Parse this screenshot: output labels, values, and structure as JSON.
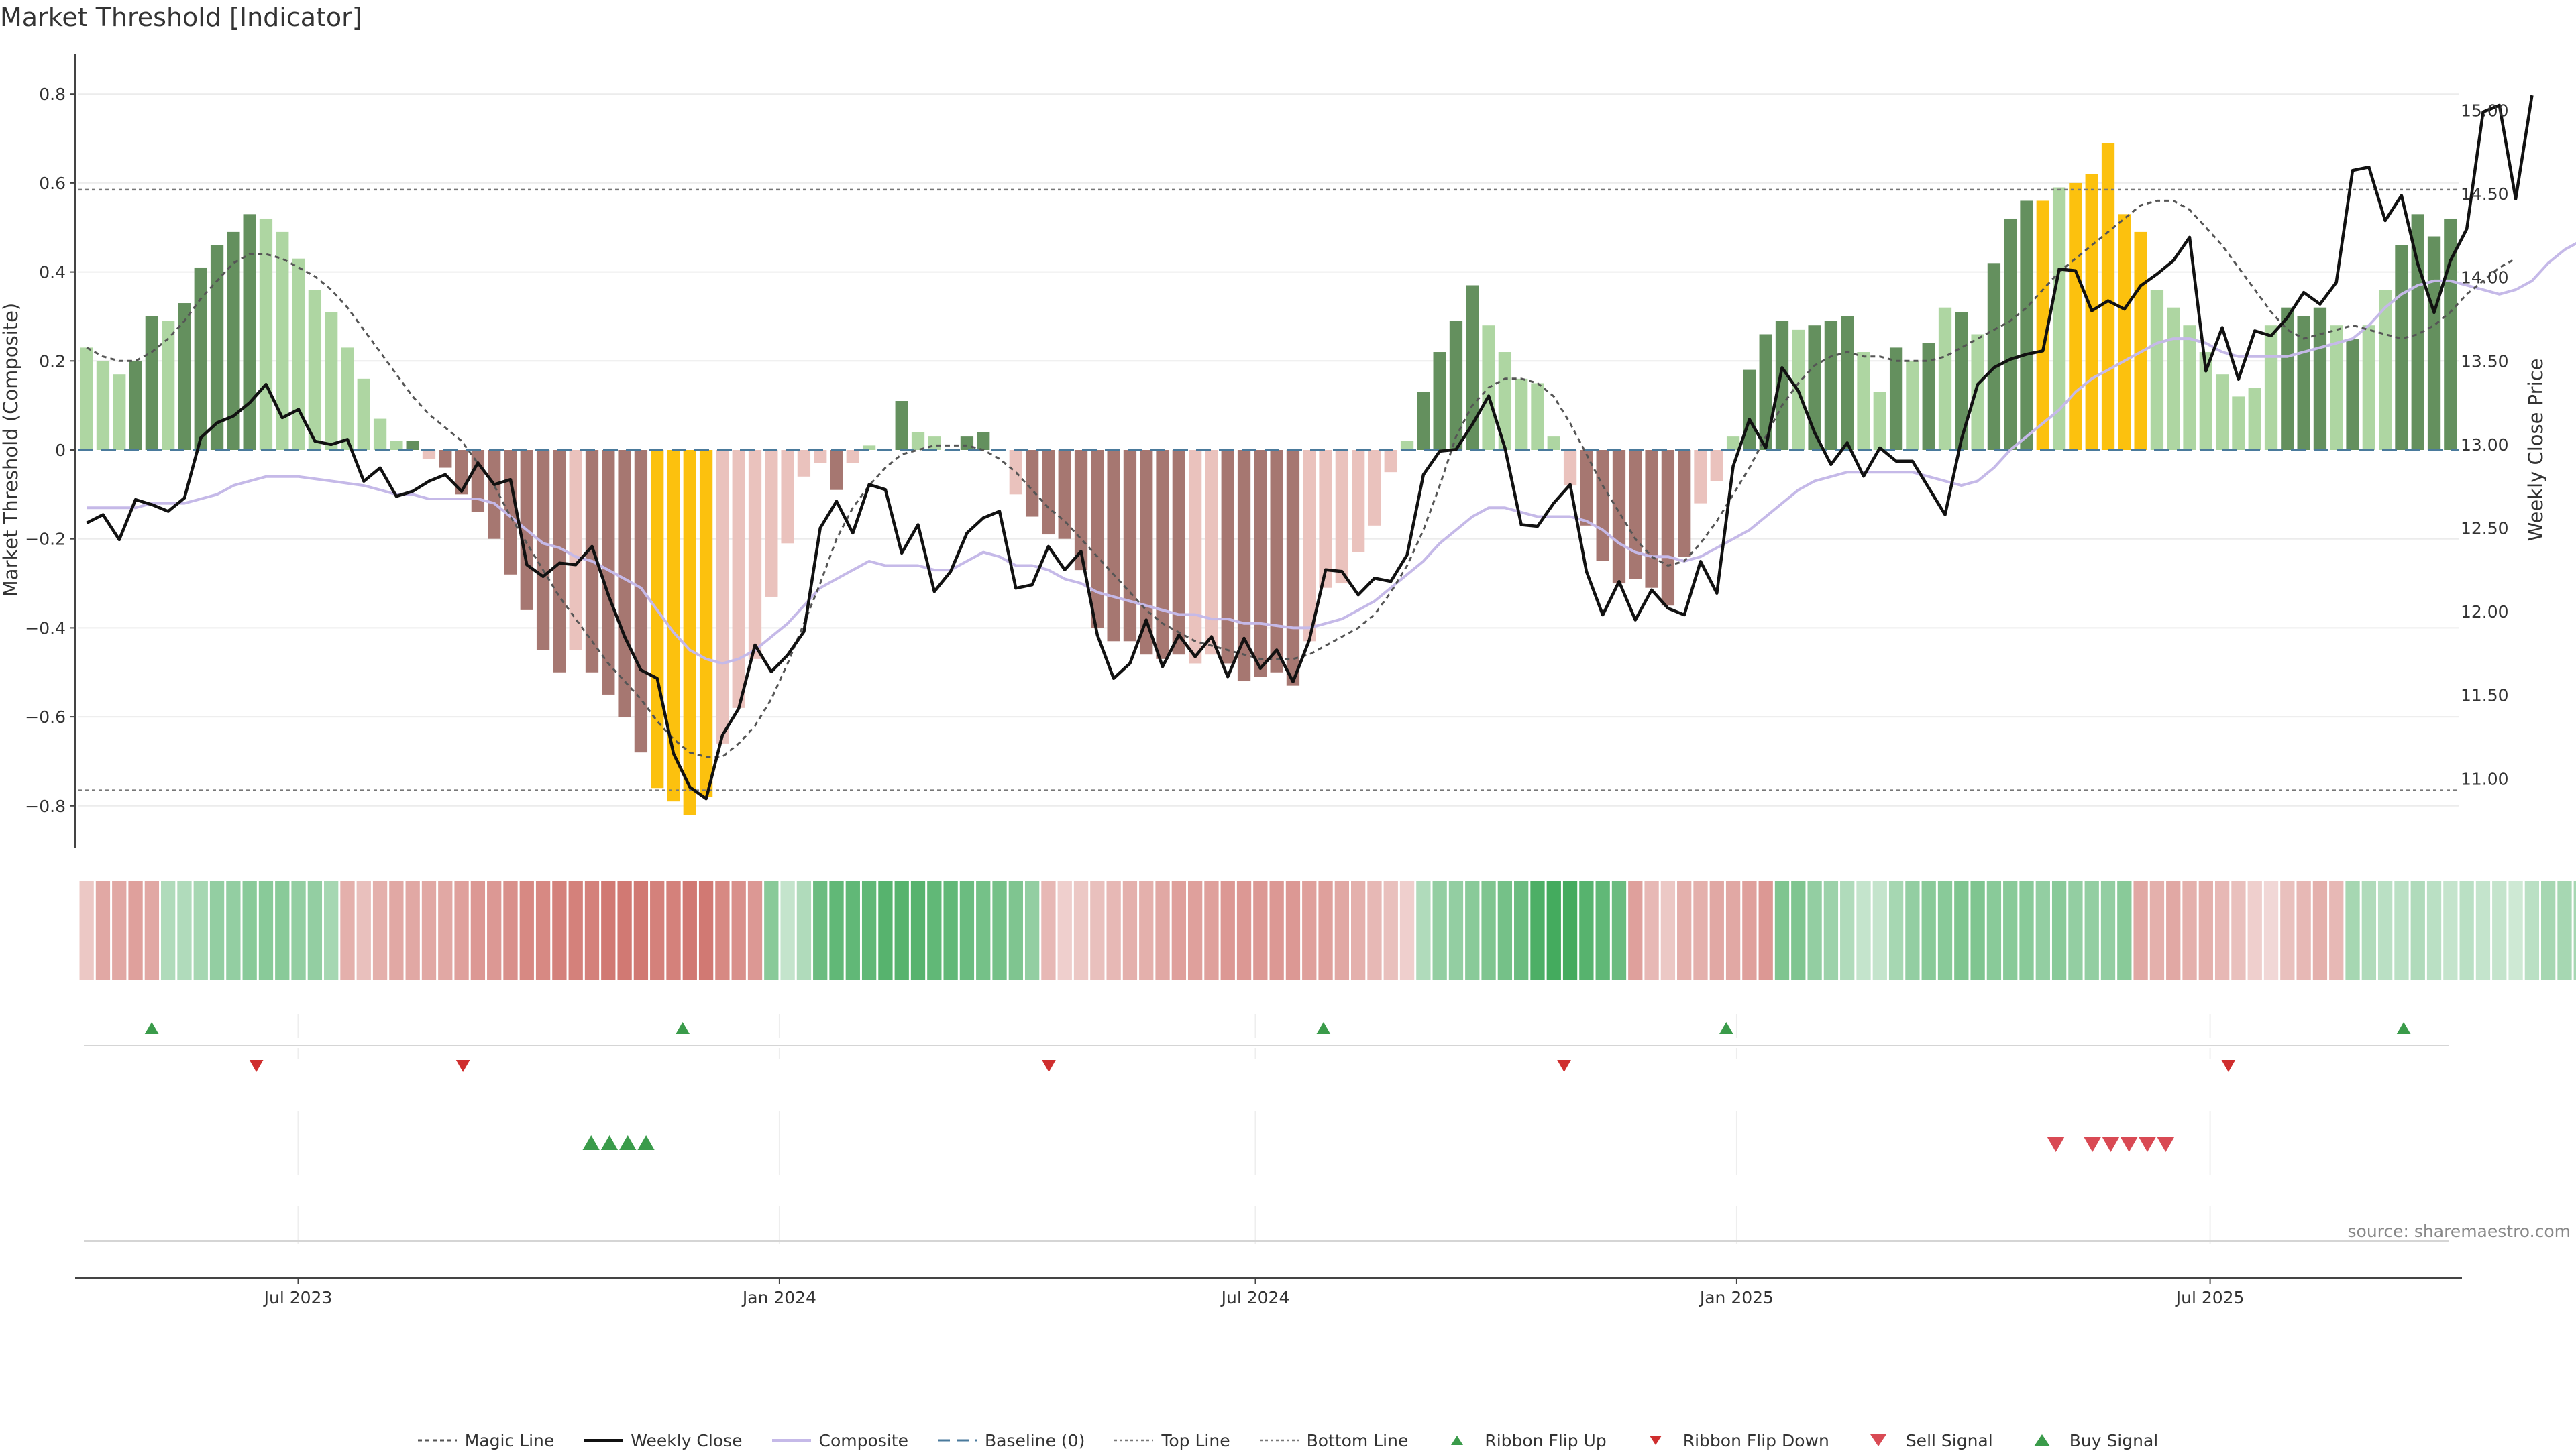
{
  "chart_data": {
    "type": "bar",
    "title": "Market Threshold [Indicator]",
    "ylabel": "Market Threshold (Composite)",
    "y2label": "Weekly Close Price",
    "ylim": [
      -0.9,
      0.9
    ],
    "y2lim": [
      10.6,
      15.4
    ],
    "yticks": [
      "0.8",
      "0.6",
      "0.4",
      "0.2",
      "0",
      "−0.2",
      "−0.4",
      "−0.6",
      "−0.8"
    ],
    "y2ticks": [
      "15.00",
      "14.50",
      "14.00",
      "13.50",
      "13.00",
      "12.50",
      "12.00",
      "11.50",
      "11.00"
    ],
    "x_start": "2023-04-08",
    "x_end": "2025-10-04",
    "xticks": [
      {
        "label": "Jul 2023",
        "date": "2023-07-01"
      },
      {
        "label": "Jan 2024",
        "date": "2024-01-01"
      },
      {
        "label": "Jul 2024",
        "date": "2024-07-01"
      },
      {
        "label": "Jan 2025",
        "date": "2025-01-01"
      },
      {
        "label": "Jul 2025",
        "date": "2025-07-01"
      }
    ],
    "top_line": 0.585,
    "bottom_line": -0.765,
    "composite": [
      0.23,
      0.2,
      0.17,
      0.2,
      0.3,
      0.29,
      0.33,
      0.41,
      0.46,
      0.49,
      0.53,
      0.52,
      0.49,
      0.43,
      0.36,
      0.31,
      0.23,
      0.16,
      0.07,
      0.02,
      0.02,
      -0.02,
      -0.04,
      -0.1,
      -0.14,
      -0.2,
      -0.28,
      -0.36,
      -0.45,
      -0.5,
      -0.45,
      -0.5,
      -0.55,
      -0.6,
      -0.68,
      -0.76,
      -0.79,
      -0.82,
      -0.78,
      -0.66,
      -0.58,
      -0.47,
      -0.33,
      -0.21,
      -0.06,
      -0.03,
      -0.09,
      -0.03,
      0.01,
      0.0,
      0.11,
      0.04,
      0.03,
      0.0,
      0.03,
      0.04,
      0.0,
      -0.1,
      -0.15,
      -0.19,
      -0.2,
      -0.27,
      -0.4,
      -0.43,
      -0.43,
      -0.46,
      -0.47,
      -0.46,
      -0.48,
      -0.46,
      -0.48,
      -0.52,
      -0.51,
      -0.5,
      -0.53,
      -0.43,
      -0.31,
      -0.3,
      -0.23,
      -0.17,
      -0.05,
      0.02,
      0.13,
      0.22,
      0.29,
      0.37,
      0.28,
      0.22,
      0.16,
      0.15,
      0.03,
      -0.08,
      -0.17,
      -0.25,
      -0.3,
      -0.29,
      -0.31,
      -0.35,
      -0.24,
      -0.12,
      -0.07,
      0.03,
      0.18,
      0.26,
      0.29,
      0.27,
      0.28,
      0.29,
      0.3,
      0.22,
      0.13,
      0.23,
      0.2,
      0.24,
      0.32,
      0.31,
      0.26,
      0.42,
      0.52,
      0.56,
      0.56,
      0.59,
      0.6,
      0.62,
      0.69,
      0.53,
      0.49,
      0.36,
      0.32,
      0.28,
      0.22,
      0.17,
      0.12,
      0.14,
      0.28,
      0.32,
      0.3,
      0.32,
      0.28,
      0.25,
      0.28,
      0.36,
      0.46,
      0.53,
      0.48,
      0.52
    ],
    "bar_styles": [
      "LG",
      "LG",
      "LG",
      "DG",
      "DG",
      "LG",
      "DG",
      "DG",
      "DG",
      "DG",
      "DG",
      "LG",
      "LG",
      "LG",
      "LG",
      "LG",
      "LG",
      "LG",
      "LG",
      "LG",
      "DG",
      "LR",
      "DR",
      "DR",
      "DR",
      "DR",
      "DR",
      "DR",
      "DR",
      "DR",
      "LR",
      "DR",
      "DR",
      "DR",
      "DR",
      "Y",
      "Y",
      "Y",
      "Y",
      "LR",
      "LR",
      "LR",
      "LR",
      "LR",
      "LR",
      "LR",
      "DR",
      "LR",
      "LG",
      "LG",
      "DG",
      "LG",
      "LG",
      "LG",
      "DG",
      "DG",
      "LR",
      "LR",
      "DR",
      "DR",
      "DR",
      "DR",
      "DR",
      "DR",
      "DR",
      "DR",
      "DR",
      "DR",
      "LR",
      "LR",
      "DR",
      "DR",
      "DR",
      "DR",
      "DR",
      "LR",
      "LR",
      "LR",
      "LR",
      "LR",
      "LR",
      "LG",
      "DG",
      "DG",
      "DG",
      "DG",
      "LG",
      "LG",
      "LG",
      "LG",
      "LG",
      "LR",
      "DR",
      "DR",
      "DR",
      "DR",
      "DR",
      "DR",
      "DR",
      "LR",
      "LR",
      "LG",
      "DG",
      "DG",
      "DG",
      "LG",
      "DG",
      "DG",
      "DG",
      "LG",
      "LG",
      "DG",
      "LG",
      "DG",
      "LG",
      "DG",
      "LG",
      "DG",
      "DG",
      "DG",
      "Y",
      "LG",
      "Y",
      "Y",
      "Y",
      "Y",
      "Y",
      "LG",
      "LG",
      "LG",
      "LG",
      "LG",
      "LG",
      "LG",
      "LG",
      "DG",
      "DG",
      "DG",
      "LG",
      "DG",
      "LG",
      "LG",
      "DG",
      "DG",
      "DG",
      "DG",
      "LG",
      "DG"
    ],
    "ribbon": [
      0.35,
      0.55,
      0.55,
      0.6,
      0.55,
      0.4,
      0.4,
      0.45,
      0.55,
      0.55,
      0.6,
      0.6,
      0.6,
      0.55,
      0.55,
      0.45,
      0.5,
      0.4,
      0.5,
      0.55,
      0.55,
      0.55,
      0.55,
      0.6,
      0.65,
      0.65,
      0.7,
      0.75,
      0.75,
      0.8,
      0.8,
      0.8,
      0.85,
      0.85,
      0.85,
      0.8,
      0.8,
      0.85,
      0.85,
      0.75,
      0.7,
      0.65,
      0.6,
      0.3,
      0.4,
      0.75,
      0.8,
      0.8,
      0.8,
      0.85,
      0.85,
      0.85,
      0.8,
      0.8,
      0.75,
      0.7,
      0.7,
      0.65,
      0.55,
      0.45,
      0.3,
      0.35,
      0.4,
      0.45,
      0.5,
      0.5,
      0.55,
      0.6,
      0.6,
      0.6,
      0.65,
      0.65,
      0.65,
      0.65,
      0.65,
      0.6,
      0.6,
      0.55,
      0.5,
      0.45,
      0.4,
      0.3,
      0.4,
      0.55,
      0.55,
      0.6,
      0.65,
      0.7,
      0.75,
      0.9,
      0.95,
      0.95,
      0.85,
      0.8,
      0.75,
      0.6,
      0.45,
      0.35,
      0.5,
      0.5,
      0.55,
      0.55,
      0.6,
      0.65,
      0.65,
      0.65,
      0.55,
      0.5,
      0.4,
      0.3,
      0.3,
      0.45,
      0.55,
      0.6,
      0.6,
      0.65,
      0.65,
      0.6,
      0.6,
      0.6,
      0.55,
      0.6,
      0.55,
      0.55,
      0.55,
      0.6,
      0.55,
      0.5,
      0.55,
      0.5,
      0.5,
      0.45,
      0.4,
      0.3,
      0.25,
      0.4,
      0.45,
      0.5,
      0.45,
      0.45,
      0.4,
      0.35,
      0.35,
      0.4,
      0.35,
      0.3,
      0.35,
      0.3,
      0.3,
      0.25,
      0.35,
      0.45,
      0.45,
      0.45
    ],
    "ribbon_sign": [
      "R",
      "R",
      "R",
      "R",
      "R",
      "G",
      "G",
      "G",
      "G",
      "G",
      "G",
      "G",
      "G",
      "G",
      "G",
      "G",
      "R",
      "R",
      "R",
      "R",
      "R",
      "R",
      "R",
      "R",
      "R",
      "R",
      "R",
      "R",
      "R",
      "R",
      "R",
      "R",
      "R",
      "R",
      "R",
      "R",
      "R",
      "R",
      "R",
      "R",
      "R",
      "R",
      "G",
      "G",
      "G",
      "G",
      "G",
      "G",
      "G",
      "G",
      "G",
      "G",
      "G",
      "G",
      "G",
      "G",
      "G",
      "G",
      "G",
      "R",
      "R",
      "R",
      "R",
      "R",
      "R",
      "R",
      "R",
      "R",
      "R",
      "R",
      "R",
      "R",
      "R",
      "R",
      "R",
      "R",
      "R",
      "R",
      "R",
      "R",
      "R",
      "R",
      "G",
      "G",
      "G",
      "G",
      "G",
      "G",
      "G",
      "G",
      "G",
      "G",
      "G",
      "G",
      "G",
      "R",
      "R",
      "R",
      "R",
      "R",
      "R",
      "R",
      "R",
      "R",
      "G",
      "G",
      "G",
      "G",
      "G",
      "G",
      "G",
      "G",
      "G",
      "G",
      "G",
      "G",
      "G",
      "G",
      "G",
      "G",
      "G",
      "G",
      "G",
      "G",
      "G",
      "G",
      "R",
      "R",
      "R",
      "R",
      "R",
      "R",
      "R",
      "R",
      "R",
      "R",
      "R",
      "R",
      "R",
      "G",
      "G",
      "G",
      "G",
      "G",
      "G",
      "G",
      "G",
      "G",
      "G",
      "G",
      "G",
      "G"
    ],
    "ribbon_colors": {
      "G": "#3aa655",
      "R": "#c9615a"
    },
    "weekly_close": [
      12.53,
      12.58,
      12.43,
      12.67,
      12.64,
      12.6,
      12.68,
      13.04,
      13.13,
      13.17,
      13.25,
      13.36,
      13.16,
      13.21,
      13.02,
      13.0,
      13.03,
      12.78,
      12.86,
      12.69,
      12.72,
      12.78,
      12.82,
      12.72,
      12.89,
      12.76,
      12.79,
      12.28,
      12.21,
      12.29,
      12.28,
      12.39,
      12.1,
      11.85,
      11.65,
      11.6,
      11.15,
      10.95,
      10.88,
      11.26,
      11.42,
      11.8,
      11.64,
      11.74,
      11.88,
      12.5,
      12.66,
      12.47,
      12.76,
      12.73,
      12.35,
      12.52,
      12.12,
      12.24,
      12.47,
      12.56,
      12.6,
      12.14,
      12.16,
      12.39,
      12.25,
      12.36,
      11.86,
      11.6,
      11.69,
      11.95,
      11.67,
      11.86,
      11.73,
      11.85,
      11.61,
      11.84,
      11.66,
      11.77,
      11.58,
      11.83,
      12.25,
      12.24,
      12.1,
      12.2,
      12.18,
      12.34,
      12.82,
      12.96,
      12.97,
      13.12,
      13.29,
      12.98,
      12.52,
      12.51,
      12.65,
      12.76,
      12.24,
      11.98,
      12.18,
      11.95,
      12.13,
      12.02,
      11.98,
      12.3,
      12.11,
      12.87,
      13.15,
      12.98,
      13.46,
      13.32,
      13.07,
      12.88,
      13.01,
      12.81,
      12.98,
      12.9,
      12.9,
      12.74,
      12.58,
      13.03,
      13.36,
      13.46,
      13.51,
      13.54,
      13.56,
      14.05,
      14.04,
      13.8,
      13.86,
      13.81,
      13.95,
      14.02,
      14.1,
      14.24,
      13.44,
      13.7,
      13.39,
      13.68,
      13.65,
      13.76,
      13.91,
      13.84,
      13.97,
      14.64,
      14.66,
      14.34,
      14.49,
      14.08,
      13.79,
      14.1,
      14.29,
      14.99,
      15.03,
      14.47,
      15.09
    ],
    "composite_smooth": [
      -0.13,
      -0.13,
      -0.13,
      -0.13,
      -0.12,
      -0.12,
      -0.12,
      -0.11,
      -0.1,
      -0.08,
      -0.07,
      -0.06,
      -0.06,
      -0.06,
      -0.065,
      -0.07,
      -0.075,
      -0.08,
      -0.09,
      -0.1,
      -0.1,
      -0.11,
      -0.11,
      -0.11,
      -0.11,
      -0.12,
      -0.15,
      -0.18,
      -0.21,
      -0.22,
      -0.24,
      -0.25,
      -0.27,
      -0.29,
      -0.31,
      -0.36,
      -0.41,
      -0.45,
      -0.47,
      -0.48,
      -0.47,
      -0.45,
      -0.42,
      -0.39,
      -0.35,
      -0.31,
      -0.29,
      -0.27,
      -0.25,
      -0.26,
      -0.26,
      -0.26,
      -0.27,
      -0.27,
      -0.25,
      -0.23,
      -0.24,
      -0.26,
      -0.26,
      -0.27,
      -0.29,
      -0.3,
      -0.32,
      -0.33,
      -0.34,
      -0.35,
      -0.36,
      -0.37,
      -0.37,
      -0.38,
      -0.38,
      -0.39,
      -0.39,
      -0.395,
      -0.4,
      -0.4,
      -0.39,
      -0.38,
      -0.36,
      -0.34,
      -0.31,
      -0.28,
      -0.25,
      -0.21,
      -0.18,
      -0.15,
      -0.13,
      -0.13,
      -0.14,
      -0.15,
      -0.15,
      -0.15,
      -0.16,
      -0.18,
      -0.21,
      -0.23,
      -0.24,
      -0.24,
      -0.25,
      -0.24,
      -0.22,
      -0.2,
      -0.18,
      -0.15,
      -0.12,
      -0.09,
      -0.07,
      -0.06,
      -0.05,
      -0.05,
      -0.05,
      -0.05,
      -0.05,
      -0.06,
      -0.07,
      -0.08,
      -0.07,
      -0.04,
      -0.0,
      0.03,
      0.06,
      0.09,
      0.13,
      0.16,
      0.18,
      0.2,
      0.22,
      0.24,
      0.25,
      0.25,
      0.24,
      0.22,
      0.21,
      0.21,
      0.21,
      0.21,
      0.22,
      0.23,
      0.24,
      0.25,
      0.28,
      0.32,
      0.35,
      0.37,
      0.38,
      0.38,
      0.37,
      0.36,
      0.35,
      0.36,
      0.38,
      0.42,
      0.45,
      0.47,
      0.48
    ],
    "magic_line": [
      0.23,
      0.21,
      0.2,
      0.2,
      0.22,
      0.25,
      0.29,
      0.34,
      0.38,
      0.42,
      0.44,
      0.44,
      0.43,
      0.41,
      0.39,
      0.36,
      0.32,
      0.27,
      0.22,
      0.17,
      0.12,
      0.08,
      0.05,
      0.02,
      -0.03,
      -0.08,
      -0.15,
      -0.21,
      -0.27,
      -0.33,
      -0.38,
      -0.43,
      -0.48,
      -0.52,
      -0.56,
      -0.61,
      -0.65,
      -0.68,
      -0.69,
      -0.69,
      -0.66,
      -0.62,
      -0.56,
      -0.48,
      -0.39,
      -0.3,
      -0.2,
      -0.13,
      -0.08,
      -0.04,
      -0.01,
      0.0,
      0.01,
      0.01,
      0.01,
      0.0,
      -0.02,
      -0.05,
      -0.09,
      -0.13,
      -0.16,
      -0.2,
      -0.24,
      -0.28,
      -0.32,
      -0.36,
      -0.39,
      -0.41,
      -0.43,
      -0.44,
      -0.45,
      -0.46,
      -0.47,
      -0.47,
      -0.47,
      -0.46,
      -0.44,
      -0.42,
      -0.4,
      -0.37,
      -0.32,
      -0.26,
      -0.18,
      -0.08,
      0.03,
      0.1,
      0.14,
      0.16,
      0.16,
      0.15,
      0.12,
      0.06,
      -0.01,
      -0.08,
      -0.14,
      -0.2,
      -0.24,
      -0.26,
      -0.25,
      -0.21,
      -0.16,
      -0.1,
      -0.04,
      0.03,
      0.1,
      0.15,
      0.19,
      0.21,
      0.22,
      0.21,
      0.21,
      0.2,
      0.2,
      0.2,
      0.21,
      0.23,
      0.25,
      0.27,
      0.29,
      0.32,
      0.36,
      0.4,
      0.43,
      0.46,
      0.49,
      0.52,
      0.55,
      0.56,
      0.56,
      0.54,
      0.5,
      0.46,
      0.41,
      0.36,
      0.31,
      0.27,
      0.25,
      0.26,
      0.27,
      0.28,
      0.27,
      0.26,
      0.25,
      0.26,
      0.28,
      0.31,
      0.35,
      0.38,
      0.41,
      0.43
    ],
    "ribbon_flip_up": [
      "2023-05-06",
      "2023-11-25",
      "2024-07-27",
      "2024-12-28",
      "2025-09-13"
    ],
    "ribbon_flip_down": [
      "2023-06-15",
      "2023-09-02",
      "2024-04-13",
      "2024-10-27",
      "2025-07-08"
    ],
    "buy_signals": [
      "2023-10-21",
      "2023-10-28",
      "2023-11-04",
      "2023-11-11"
    ],
    "sell_signals": [
      "2025-05-03",
      "2025-05-17",
      "2025-05-24",
      "2025-05-31",
      "2025-06-07",
      "2025-06-14"
    ],
    "bar_colors": {
      "DG": "#64905e",
      "LG": "#aed6a2",
      "DR": "#a67771",
      "LR": "#eac2bd",
      "Y": "#fcc10e"
    },
    "line_colors": {
      "magic": "#555555",
      "close": "#111111",
      "composite": "#c5b9e8",
      "baseline": "#4a7a9c",
      "limit": "#777777",
      "flip_up": "#3a9b4a",
      "flip_down": "#cf2e2e",
      "buy": "#3a9b4a",
      "sell": "#d94a54"
    },
    "source": "source: sharemaestro.com",
    "legend": [
      {
        "label": "Magic Line",
        "key": "magic"
      },
      {
        "label": "Weekly Close",
        "key": "close"
      },
      {
        "label": "Composite",
        "key": "composite"
      },
      {
        "label": "Baseline (0)",
        "key": "baseline"
      },
      {
        "label": "Top Line",
        "key": "top"
      },
      {
        "label": "Bottom Line",
        "key": "bottom"
      },
      {
        "label": "Ribbon Flip Up",
        "key": "flip_up"
      },
      {
        "label": "Ribbon Flip Down",
        "key": "flip_down"
      },
      {
        "label": "Sell Signal",
        "key": "sell"
      },
      {
        "label": "Buy Signal",
        "key": "buy"
      }
    ]
  }
}
